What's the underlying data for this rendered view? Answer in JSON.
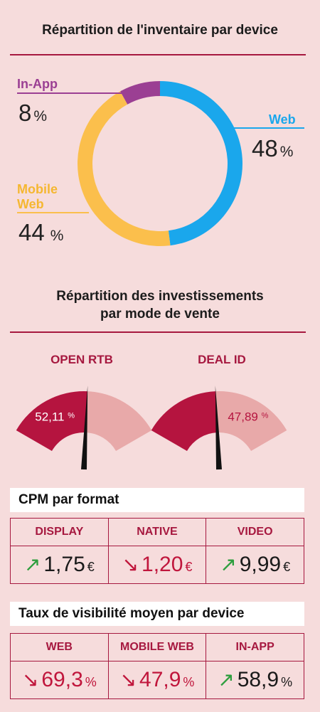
{
  "chart_data": [
    {
      "type": "pie",
      "title": "Répartition de l'inventaire par device",
      "slices": [
        {
          "label": "Web",
          "value": 48,
          "display": "48",
          "color": "#1aa7ec"
        },
        {
          "label": "Mobile Web",
          "value": 44,
          "display": "44",
          "color": "#fbbf4c"
        },
        {
          "label": "In-App",
          "value": 8,
          "display": "8",
          "color": "#9b3f93"
        }
      ],
      "unit": "%"
    },
    {
      "type": "gauge",
      "title": "Répartition des investissements par mode de vente",
      "title_line1": "Répartition des investissements",
      "title_line2": "par mode de vente",
      "gauges": [
        {
          "label": "OPEN RTB",
          "value": 52.11,
          "display": "52,11",
          "unit": "%"
        },
        {
          "label": "DEAL ID",
          "value": 47.89,
          "display": "47,89",
          "unit": "%"
        }
      ],
      "colors": {
        "primary": "#b5143f",
        "secondary": "#e8a9a9",
        "needle": "#111111"
      }
    },
    {
      "type": "table",
      "title": "CPM par format",
      "columns": [
        "DISPLAY",
        "NATIVE",
        "VIDEO"
      ],
      "cells": [
        {
          "trend": "up",
          "value": 1.75,
          "display": "1,75",
          "unit": "€"
        },
        {
          "trend": "down",
          "value": 1.2,
          "display": "1,20",
          "unit": "€"
        },
        {
          "trend": "up",
          "value": 9.99,
          "display": "9,99",
          "unit": "€"
        }
      ]
    },
    {
      "type": "table",
      "title": "Taux de visibilité moyen par device",
      "columns": [
        "WEB",
        "MOBILE WEB",
        "IN-APP"
      ],
      "cells": [
        {
          "trend": "down",
          "value": 69.3,
          "display": "69,3",
          "unit": "%"
        },
        {
          "trend": "down",
          "value": 47.9,
          "display": "47,9",
          "unit": "%"
        },
        {
          "trend": "up",
          "value": 58.9,
          "display": "58,9",
          "unit": "%"
        }
      ]
    }
  ],
  "donut_labels": {
    "in_app": "In-App",
    "mobile_web_l1": "Mobile",
    "mobile_web_l2": "Web",
    "web": "Web",
    "unit": "%"
  },
  "icons": {
    "up": "arrow-up-right-icon",
    "down": "arrow-down-right-icon"
  }
}
